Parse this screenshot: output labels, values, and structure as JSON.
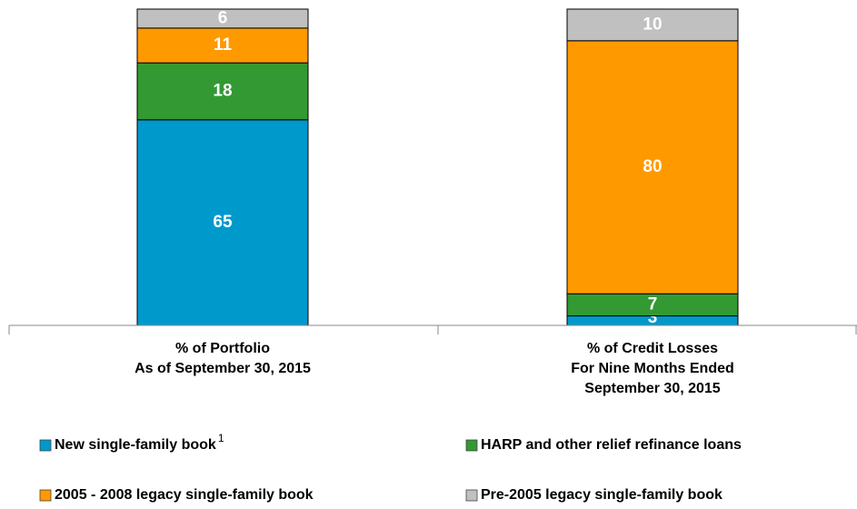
{
  "chart_data": {
    "type": "bar",
    "stacked": true,
    "categories": [
      [
        "% of Portfolio",
        "As of September 30, 2015"
      ],
      [
        "% of Credit Losses",
        "For Nine Months Ended",
        "September 30, 2015"
      ]
    ],
    "series": [
      {
        "name": "New single-family book",
        "footnote": "1",
        "color": "#0099cc",
        "values": [
          65,
          3
        ]
      },
      {
        "name": "HARP and other relief refinance loans",
        "color": "#339933",
        "values": [
          18,
          7
        ]
      },
      {
        "name": "2005 - 2008 legacy single-family book",
        "color": "#ff9900",
        "values": [
          11,
          80
        ]
      },
      {
        "name": "Pre-2005 legacy single-family book",
        "color": "#c0c0c0",
        "values": [
          6,
          10
        ]
      }
    ],
    "ylim": [
      0,
      100
    ],
    "legend": "bottom"
  }
}
